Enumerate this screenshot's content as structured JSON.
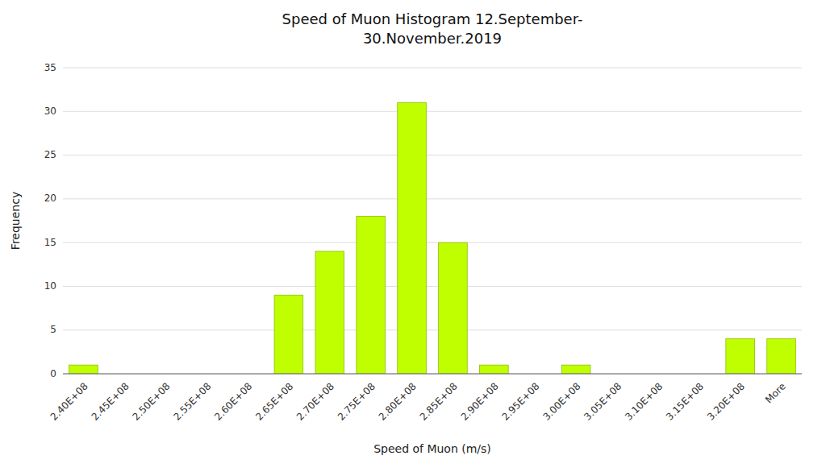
{
  "chart_data": {
    "type": "bar",
    "title": "Speed of Muon Histogram  12.September-\n30.November.2019",
    "xlabel": "Speed of Muon (m/s)",
    "ylabel": "Frequency",
    "categories": [
      "2.40E+08",
      "2.45E+08",
      "2.50E+08",
      "2.55E+08",
      "2.60E+08",
      "2.65E+08",
      "2.70E+08",
      "2.75E+08",
      "2.80E+08",
      "2.85E+08",
      "2.90E+08",
      "2.95E+08",
      "3.00E+08",
      "3.05E+08",
      "3.10E+08",
      "3.15E+08",
      "3.20E+08",
      "More"
    ],
    "values": [
      1,
      0,
      0,
      0,
      0,
      9,
      14,
      18,
      31,
      15,
      1,
      0,
      1,
      0,
      0,
      0,
      4,
      4
    ],
    "color": "#BFFF00",
    "ylim": [
      0,
      35
    ],
    "yticks": [
      0,
      5,
      10,
      15,
      20,
      25,
      30,
      35
    ],
    "grid": true
  }
}
